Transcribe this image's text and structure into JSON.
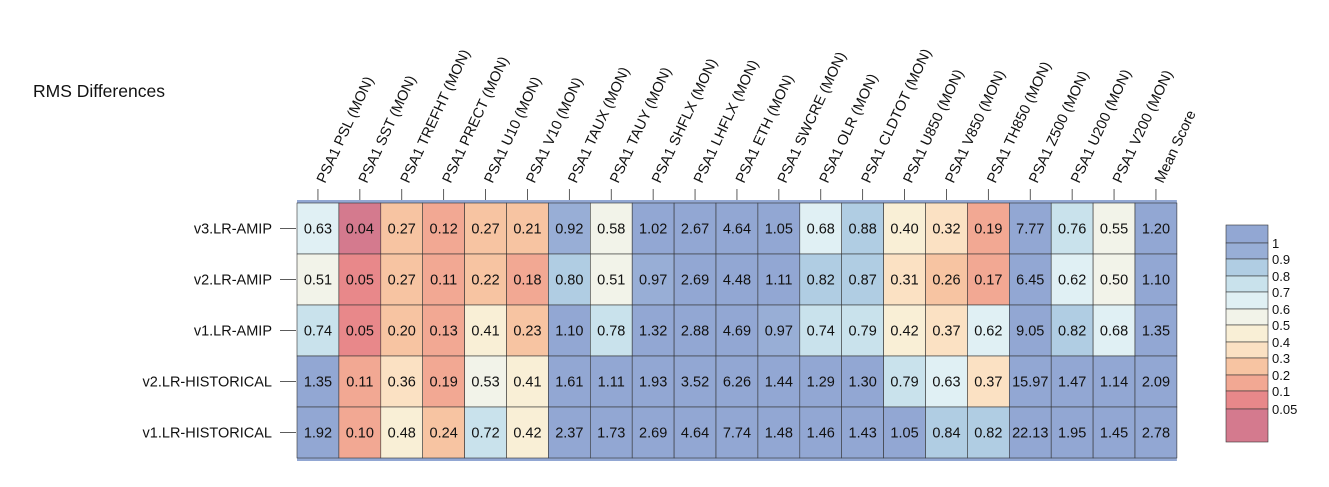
{
  "chart_data": {
    "type": "heatmap",
    "title": "RMS Differences",
    "columns": [
      "PSA1 PSL (MON)",
      "PSA1 SST (MON)",
      "PSA1 TREFHT (MON)",
      "PSA1 PRECT (MON)",
      "PSA1 U10 (MON)",
      "PSA1 V10 (MON)",
      "PSA1 TAUX (MON)",
      "PSA1 TAUY (MON)",
      "PSA1 SHFLX (MON)",
      "PSA1 LHFLX (MON)",
      "PSA1 ETH (MON)",
      "PSA1 SWCRE (MON)",
      "PSA1 OLR (MON)",
      "PSA1 CLDTOT (MON)",
      "PSA1 U850 (MON)",
      "PSA1 V850 (MON)",
      "PSA1 TH850 (MON)",
      "PSA1 Z500 (MON)",
      "PSA1 U200 (MON)",
      "PSA1 V200 (MON)",
      "Mean Score"
    ],
    "rows": [
      "v3.LR-AMIP",
      "v2.LR-AMIP",
      "v1.LR-AMIP",
      "v2.LR-HISTORICAL",
      "v1.LR-HISTORICAL"
    ],
    "values": [
      [
        0.63,
        0.04,
        0.27,
        0.12,
        0.27,
        0.21,
        0.92,
        0.58,
        1.02,
        2.67,
        4.64,
        1.05,
        0.68,
        0.88,
        0.4,
        0.32,
        0.19,
        7.77,
        0.76,
        0.55,
        1.2
      ],
      [
        0.51,
        0.05,
        0.27,
        0.11,
        0.22,
        0.18,
        0.8,
        0.51,
        0.97,
        2.69,
        4.48,
        1.11,
        0.82,
        0.87,
        0.31,
        0.26,
        0.17,
        6.45,
        0.62,
        0.5,
        1.1
      ],
      [
        0.74,
        0.05,
        0.2,
        0.13,
        0.41,
        0.23,
        1.1,
        0.78,
        1.32,
        2.88,
        4.69,
        0.97,
        0.74,
        0.79,
        0.42,
        0.37,
        0.62,
        9.05,
        0.82,
        0.68,
        1.35
      ],
      [
        1.35,
        0.11,
        0.36,
        0.19,
        0.53,
        0.41,
        1.61,
        1.11,
        1.93,
        3.52,
        6.26,
        1.44,
        1.29,
        1.3,
        0.79,
        0.63,
        0.37,
        15.97,
        1.47,
        1.14,
        2.09
      ],
      [
        1.92,
        0.1,
        0.48,
        0.24,
        0.72,
        0.42,
        2.37,
        1.73,
        2.69,
        4.64,
        7.74,
        1.48,
        1.46,
        1.43,
        1.05,
        0.84,
        0.82,
        22.13,
        1.95,
        1.45,
        2.78
      ]
    ],
    "colorbar": {
      "boundaries": [
        0.05,
        0.1,
        0.2,
        0.3,
        0.4,
        0.5,
        0.6,
        0.7,
        0.8,
        0.9,
        1
      ],
      "tick_labels": [
        "1",
        "0.9",
        "0.8",
        "0.7",
        "0.6",
        "0.5",
        "0.4",
        "0.3",
        "0.2",
        "0.1",
        "0.05"
      ],
      "colors": [
        "#d47a8e",
        "#e8888a",
        "#f2a893",
        "#f7c4a2",
        "#fbe1c3",
        "#f9efd6",
        "#f2f3e9",
        "#e0f0f4",
        "#c9e2ec",
        "#b0cde3",
        "#98aed6",
        "#92a7d3"
      ]
    },
    "grid": true,
    "legend": "right"
  }
}
